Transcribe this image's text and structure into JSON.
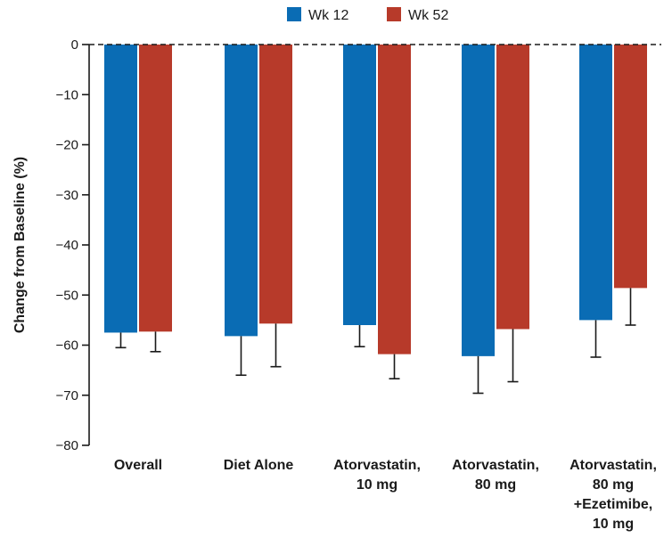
{
  "chart_data": {
    "type": "bar",
    "ylabel": "Change from Baseline (%)",
    "ylim": [
      -80,
      0
    ],
    "yticks": [
      0,
      -10,
      -20,
      -30,
      -40,
      -50,
      -60,
      -70,
      -80
    ],
    "ytick_labels": [
      "0",
      "−10",
      "−20",
      "−30",
      "−40",
      "−50",
      "−60",
      "−70",
      "−80"
    ],
    "categories": [
      [
        "Overall"
      ],
      [
        "Diet Alone"
      ],
      [
        "Atorvastatin,",
        "10 mg"
      ],
      [
        "Atorvastatin,",
        "80 mg"
      ],
      [
        "Atorvastatin,",
        "80 mg",
        "+Ezetimibe,",
        "10 mg"
      ]
    ],
    "series": [
      {
        "name": "Wk 12",
        "color": "#0a6cb4",
        "values": [
          -57.5,
          -58.2,
          -56.0,
          -62.2,
          -55.0
        ],
        "error_lower": [
          -60.5,
          -66.0,
          -60.3,
          -69.6,
          -62.4
        ]
      },
      {
        "name": "Wk 52",
        "color": "#b73a2a",
        "values": [
          -57.3,
          -55.7,
          -61.8,
          -56.8,
          -48.6
        ],
        "error_lower": [
          -61.3,
          -64.3,
          -66.7,
          -67.3,
          -56.0
        ]
      }
    ],
    "baseline_style": "dashed",
    "legend_position": "top-center",
    "grid": false
  }
}
